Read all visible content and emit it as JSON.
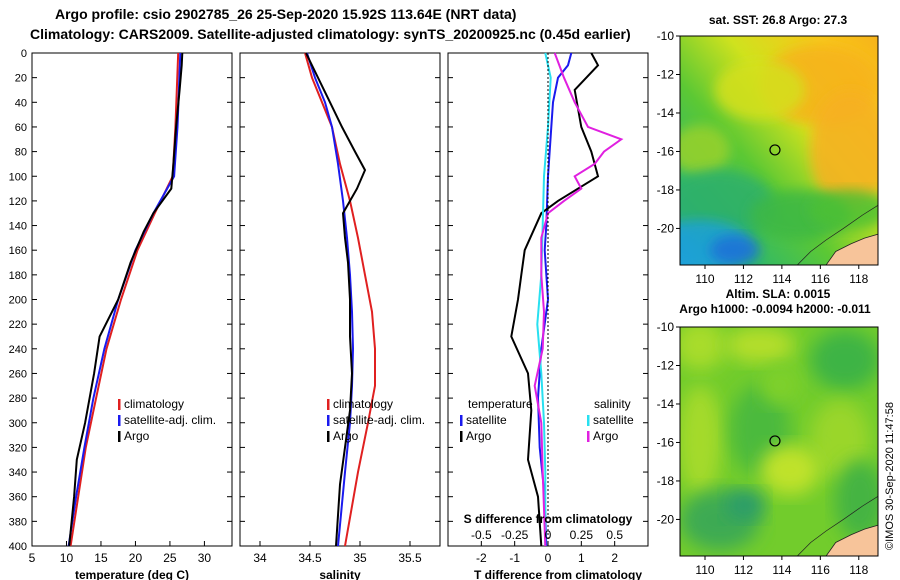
{
  "header": {
    "line1": "Argo profile: csio 2902785_26 25-Sep-2020 15.92S 113.64E (NRT data)",
    "line2": "Climatology: CARS2009. Satellite-adjusted climatology: synTS_20200925.nc (0.45d earlier)"
  },
  "credit": "©IMOS 30-Sep-2020 11:47:58",
  "colors": {
    "climatology": "#e02020",
    "satellite": "#1a1aee",
    "argo": "#000000",
    "salinity_diff": "#e020e0",
    "salinity_sat": "#28e0f0"
  },
  "chart_data": [
    {
      "type": "line",
      "id": "temperature",
      "xlabel": "temperature (deg C)",
      "ylabel": "depth",
      "xlim": [
        5,
        34
      ],
      "ylim": [
        400,
        0
      ],
      "x_ticks": [
        5,
        10,
        15,
        20,
        25,
        30
      ],
      "y_ticks": [
        0,
        20,
        40,
        60,
        80,
        100,
        120,
        140,
        160,
        180,
        200,
        220,
        240,
        260,
        280,
        300,
        320,
        340,
        360,
        380,
        400
      ],
      "legend": [
        "climatology",
        "satellite-adj. clim.",
        "Argo"
      ],
      "series": [
        {
          "name": "climatology",
          "color": "#e02020",
          "depth": [
            0,
            30,
            60,
            100,
            130,
            160,
            200,
            240,
            280,
            320,
            360,
            400
          ],
          "values": [
            26.2,
            26.0,
            25.8,
            25.4,
            22.8,
            20.3,
            17.9,
            15.8,
            14.3,
            12.8,
            11.7,
            10.6
          ]
        },
        {
          "name": "satellite-adj. clim.",
          "color": "#1a1aee",
          "depth": [
            0,
            30,
            60,
            100,
            130,
            160,
            200,
            240,
            280,
            320,
            360,
            400
          ],
          "values": [
            26.5,
            26.3,
            26.1,
            25.6,
            22.6,
            20.0,
            17.5,
            15.5,
            13.9,
            12.6,
            11.4,
            10.3
          ]
        },
        {
          "name": "Argo",
          "color": "#000000",
          "depth": [
            0,
            10,
            30,
            60,
            90,
            110,
            130,
            145,
            170,
            200,
            230,
            260,
            300,
            330,
            360,
            400
          ],
          "values": [
            26.8,
            26.7,
            26.4,
            25.9,
            25.5,
            25.2,
            22.6,
            21.2,
            19.3,
            17.5,
            14.8,
            14.0,
            12.7,
            11.5,
            11.1,
            10.4
          ]
        }
      ]
    },
    {
      "type": "line",
      "id": "salinity",
      "xlabel": "salinity",
      "xlim": [
        33.8,
        35.8
      ],
      "ylim": [
        400,
        0
      ],
      "x_ticks": [
        34,
        34.5,
        35,
        35.5
      ],
      "y_ticks": [
        0,
        20,
        40,
        60,
        80,
        100,
        120,
        140,
        160,
        180,
        200,
        220,
        240,
        260,
        280,
        300,
        320,
        340,
        360,
        380,
        400
      ],
      "legend": [
        "climatology",
        "satellite-adj. clim.",
        "Argo"
      ],
      "series": [
        {
          "name": "climatology",
          "color": "#e02020",
          "depth": [
            0,
            20,
            40,
            60,
            90,
            120,
            150,
            180,
            210,
            240,
            270,
            300,
            340,
            400
          ],
          "values": [
            34.45,
            34.52,
            34.62,
            34.72,
            34.8,
            34.9,
            34.98,
            35.05,
            35.12,
            35.15,
            35.15,
            35.08,
            34.98,
            34.85
          ]
        },
        {
          "name": "satellite-adj. clim.",
          "color": "#1a1aee",
          "depth": [
            0,
            20,
            40,
            60,
            90,
            120,
            150,
            180,
            210,
            240,
            270,
            300,
            340,
            400
          ],
          "values": [
            34.47,
            34.55,
            34.65,
            34.72,
            34.78,
            34.83,
            34.87,
            34.9,
            34.92,
            34.93,
            34.92,
            34.9,
            34.85,
            34.78
          ]
        },
        {
          "name": "Argo",
          "color": "#000000",
          "depth": [
            0,
            20,
            40,
            60,
            80,
            95,
            110,
            120,
            130,
            150,
            170,
            200,
            230,
            260,
            290,
            320,
            350,
            400
          ],
          "values": [
            34.46,
            34.58,
            34.7,
            34.82,
            34.95,
            35.05,
            34.97,
            34.9,
            34.83,
            34.85,
            34.88,
            34.9,
            34.9,
            34.92,
            34.9,
            34.85,
            34.8,
            34.76
          ]
        }
      ]
    },
    {
      "type": "line",
      "id": "difference",
      "xlabel": "T difference from climatology",
      "top_label": "S difference from climatology",
      "xlim": [
        -3,
        3
      ],
      "top_xlim": [
        -0.75,
        0.75
      ],
      "ylim": [
        400,
        0
      ],
      "x_ticks": [
        -2,
        -1,
        0,
        1,
        2
      ],
      "top_ticks": [
        -0.5,
        -0.25,
        0,
        0.25,
        0.5
      ],
      "y_ticks": [
        0,
        20,
        40,
        60,
        80,
        100,
        120,
        140,
        160,
        180,
        200,
        220,
        240,
        260,
        280,
        300,
        320,
        340,
        360,
        380,
        400
      ],
      "legend_left_title": "temperature",
      "legend_right_title": "salinity",
      "legend_left": [
        "satellite",
        "Argo"
      ],
      "legend_right": [
        "satellite",
        "Argo"
      ],
      "series": [
        {
          "name": "T satellite",
          "color": "#1a1aee",
          "axis": "T",
          "depth": [
            0,
            10,
            20,
            40,
            60,
            100,
            140,
            160,
            200,
            240,
            280,
            320,
            360,
            400
          ],
          "values": [
            0.7,
            0.6,
            0.3,
            0.15,
            0.1,
            0.0,
            -0.05,
            -0.1,
            0.0,
            -0.2,
            -0.3,
            -0.25,
            -0.1,
            -0.05
          ]
        },
        {
          "name": "T Argo",
          "color": "#000000",
          "axis": "T",
          "depth": [
            0,
            10,
            30,
            60,
            80,
            100,
            120,
            130,
            160,
            180,
            200,
            230,
            260,
            290,
            330,
            360,
            400
          ],
          "values": [
            1.3,
            1.5,
            0.8,
            1.0,
            1.3,
            1.5,
            0.3,
            -0.2,
            -0.7,
            -0.8,
            -0.9,
            -1.1,
            -0.6,
            -0.5,
            -0.6,
            -0.3,
            -0.2
          ]
        },
        {
          "name": "S satellite",
          "color": "#28e0f0",
          "axis": "S",
          "depth": [
            0,
            20,
            60,
            100,
            140,
            180,
            220,
            260,
            300,
            340,
            400
          ],
          "values": [
            -0.02,
            0.02,
            0.0,
            -0.03,
            -0.04,
            -0.05,
            -0.08,
            -0.05,
            -0.03,
            -0.02,
            -0.02
          ]
        },
        {
          "name": "S Argo",
          "color": "#e020e0",
          "axis": "S",
          "depth": [
            0,
            20,
            40,
            60,
            70,
            80,
            90,
            100,
            110,
            120,
            130,
            150,
            180,
            210,
            240,
            270,
            300,
            340,
            400
          ],
          "values": [
            0.05,
            0.12,
            0.2,
            0.3,
            0.55,
            0.42,
            0.35,
            0.2,
            0.25,
            0.12,
            0.0,
            -0.05,
            -0.05,
            -0.03,
            -0.04,
            -0.1,
            -0.05,
            -0.04,
            -0.02
          ]
        }
      ]
    },
    {
      "type": "heatmap",
      "id": "sst-map",
      "title": "sat. SST: 26.8 Argo: 27.3",
      "x_ticks": [
        110,
        112,
        114,
        116,
        118
      ],
      "y_ticks": [
        -10,
        -12,
        -14,
        -16,
        -18,
        -20
      ],
      "xlim": [
        108.7,
        119
      ],
      "ylim": [
        -21.9,
        -10
      ],
      "argo_position": [
        113.64,
        -15.92
      ]
    },
    {
      "type": "heatmap",
      "id": "sla-map",
      "title_line1": "Altim. SLA: 0.0015",
      "title_line2": "Argo h1000: -0.0094 h2000: -0.011",
      "x_ticks": [
        110,
        112,
        114,
        116,
        118
      ],
      "y_ticks": [
        -10,
        -12,
        -14,
        -16,
        -18,
        -20
      ],
      "xlim": [
        108.7,
        119
      ],
      "ylim": [
        -21.9,
        -10
      ],
      "argo_position": [
        113.64,
        -15.92
      ]
    }
  ]
}
